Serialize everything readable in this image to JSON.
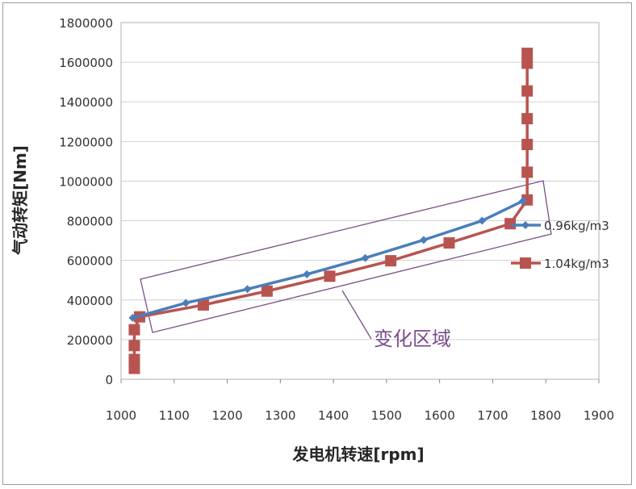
{
  "chart_data": {
    "type": "line",
    "xlabel": "发电机转速[rpm]",
    "ylabel": "气动转矩[Nm]",
    "xlim": [
      1000,
      1900
    ],
    "ylim": [
      0,
      1800000
    ],
    "xticks": [
      1000,
      1100,
      1200,
      1300,
      1400,
      1500,
      1600,
      1700,
      1800,
      1900
    ],
    "yticks": [
      0,
      200000,
      400000,
      600000,
      800000,
      1000000,
      1200000,
      1400000,
      1600000,
      1800000
    ],
    "grid": "horizontal",
    "legend_position": "right",
    "series": [
      {
        "name": "0.96kg/m3",
        "color": "#4a7ebb",
        "marker": "diamond",
        "points": [
          [
            1022,
            310000
          ],
          [
            1122,
            385000
          ],
          [
            1238,
            455000
          ],
          [
            1350,
            530000
          ],
          [
            1460,
            612000
          ],
          [
            1570,
            703000
          ],
          [
            1680,
            800000
          ],
          [
            1757,
            900000
          ]
        ]
      },
      {
        "name": "1.04kg/m3",
        "color": "#b85450",
        "marker": "square",
        "points": [
          [
            1025,
            55000
          ],
          [
            1025,
            100000
          ],
          [
            1025,
            170000
          ],
          [
            1025,
            250000
          ],
          [
            1035,
            315000
          ],
          [
            1155,
            375000
          ],
          [
            1275,
            445000
          ],
          [
            1393,
            520000
          ],
          [
            1508,
            598000
          ],
          [
            1618,
            688000
          ],
          [
            1733,
            785000
          ],
          [
            1765,
            905000
          ],
          [
            1765,
            1045000
          ],
          [
            1765,
            1185000
          ],
          [
            1765,
            1315000
          ],
          [
            1765,
            1455000
          ],
          [
            1765,
            1595000
          ],
          [
            1765,
            1645000
          ]
        ]
      }
    ],
    "annotation": {
      "text": "变化区域",
      "color": "#7a4e8a"
    }
  }
}
